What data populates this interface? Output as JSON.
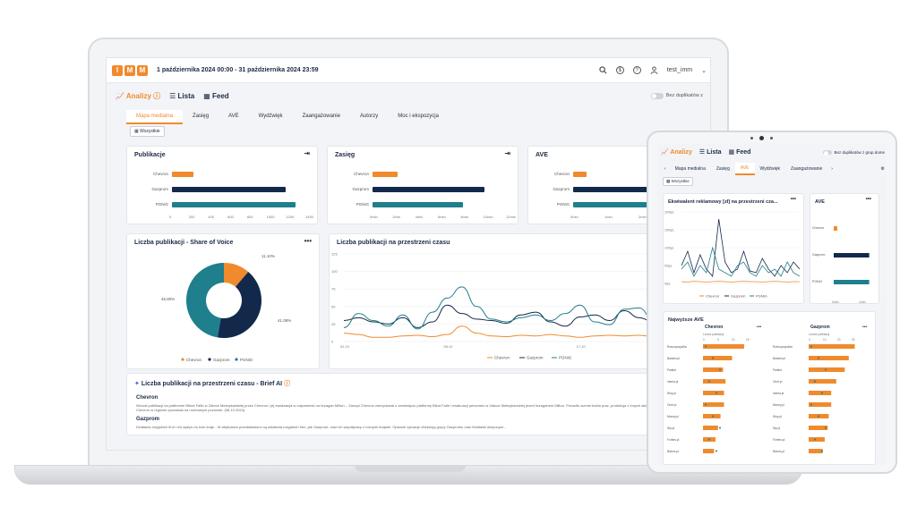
{
  "colors": {
    "chevron": "#f08a2c",
    "gazprom": "#13294b",
    "pgnig": "#1f7f8c",
    "accent": "#f08a2c"
  },
  "logo": [
    "I",
    "M",
    "M"
  ],
  "header": {
    "date_range": "1 października 2024 00:00 - 31 października 2024 23:59",
    "user": "test_imm"
  },
  "views": {
    "analizy": "Analizy",
    "lista": "Lista",
    "feed": "Feed",
    "dup_toggle": "Bez duplikatów z"
  },
  "tabs": [
    "Mapa medialna",
    "Zasięg",
    "AVE",
    "Wydźwięk",
    "Zaangażowanie",
    "Autorzy",
    "Moc i ekspozycja"
  ],
  "filter_button": "Wszystkie",
  "publikacje": {
    "title": "Publikacje",
    "categories": [
      "Chevron",
      "Gazprom",
      "PGNiG"
    ],
    "ticks": [
      "0",
      "200",
      "400",
      "600",
      "800",
      "1000",
      "1200",
      "1400"
    ]
  },
  "zasieg": {
    "title": "Zasięg",
    "categories": [
      "Chevron",
      "Gazprom",
      "PGNiG"
    ],
    "ticks": [
      "0mln",
      "2mln",
      "4mln",
      "6mln",
      "8mln",
      "10mln",
      "12mln"
    ]
  },
  "ave": {
    "title": "AVE",
    "categories": [
      "Chevron",
      "Gazprom",
      "PGNiG"
    ],
    "ticks": [
      "0mln",
      "1mln",
      "2mln",
      "3mln",
      "4mln"
    ]
  },
  "sov": {
    "title": "Liczba publikacji - Share of Voice",
    "labels": [
      "11.10%",
      "41.08%",
      "46.80%"
    ],
    "legend": [
      "Chevron",
      "Gazprom",
      "PGNiG"
    ]
  },
  "time": {
    "title": "Liczba publikacji na przestrzeni czasu",
    "yticks": [
      "125",
      "100",
      "75",
      "50",
      "25",
      "0"
    ],
    "xticks": [
      "01.10",
      "08.10",
      "17.10",
      "25.10"
    ],
    "legend": [
      "Chevron",
      "Gazprom",
      "PGNiG"
    ]
  },
  "brief": {
    "title": "Liczba publikacji na przestrzeni czasu - Brief AI",
    "sections": [
      {
        "name": "Chevron",
        "text": "Wzrost publikacji na platformie Bitnet Fatih w Zatoce Meksykańskiej przez Chevron i jej ewakuacja w odpowiedzi na huragan Milton. - Zarząd Chevron zdecydował o zamknięciu platformy Blind Faith i ewakuacji personelu w Zatoce Meksykańskiej przed huraganem Milton. Ponadto wzrósł liczba prac, produkcja z innych aktywów Chevron w regionie pozostała na normalnym poziomie. (08.10.2024)."
      },
      {
        "name": "Gazprom",
        "text": "Działania rosyjskich firm i ich wpływ na inne kraje - W artykułach przedstawiono są działania rosyjskich firm, jak Gazprom, oraz ich współpracę z różnymi krajami. Opisane sytuacje obejmują grupy Gazpromu oraz Mołdawii dotyczące..."
      }
    ]
  },
  "tablet": {
    "views": {
      "analizy": "Analizy",
      "lista": "Lista",
      "feed": "Feed",
      "dup_toggle": "Bez duplikatów z grup dome"
    },
    "tabs": [
      "Mapa medialna",
      "Zasięg",
      "AVE",
      "Wydźwięk",
      "Zaangażowanie"
    ],
    "filter_button": "Wszystkie",
    "ekwiwalent": {
      "title": "Ekwiwalent reklamowy [zł] na przestrzeni cza...",
      "yticks": [
        "200tys.",
        "150tys.",
        "100tys.",
        "50tys.",
        "0tys."
      ],
      "legend": [
        "Chevron",
        "Gazprom",
        "PGNiG"
      ]
    },
    "ave": {
      "title": "AVE",
      "categories": [
        "Chevron",
        "Gazprom",
        "PGNiG"
      ],
      "ticks": [
        "0mln",
        "1mln"
      ]
    },
    "najwyzsze": {
      "title": "Najwyższe AVE",
      "chevron": {
        "title": "Chevron",
        "axis": "Liczba publikacji",
        "ticks": [
          "0",
          "5",
          "10",
          "15"
        ],
        "sources": [
          "Rzeczpospolita",
          "Bankier.pl",
          "Parkiet",
          "Interia.pl",
          "Wnp.pl",
          "Onet.pl",
          "Money.pl",
          "Wp.pl",
          "Forbes.pl",
          "Biznes.pl"
        ],
        "values": [
          0.82,
          0.58,
          0.4,
          0.45,
          0.42,
          0.42,
          0.35,
          0.3,
          0.25,
          0.22
        ]
      },
      "gazprom": {
        "title": "Gazprom",
        "axis": "Liczba publikacji",
        "ticks": [
          "0",
          "10",
          "20",
          "30"
        ],
        "sources": [
          "Rzeczpospolita",
          "Bankier.pl",
          "Parkiet",
          "Onet.pl",
          "Interia.pl",
          "Money.pl",
          "Wnp.pl",
          "Wp.pl",
          "Forbes.pl",
          "Biznes.pl"
        ],
        "values": [
          0.92,
          0.8,
          0.72,
          0.55,
          0.45,
          0.45,
          0.4,
          0.38,
          0.32,
          0.28
        ]
      }
    }
  },
  "chart_data": [
    {
      "type": "bar",
      "title": "Publikacje",
      "categories": [
        "Chevron",
        "Gazprom",
        "PGNiG"
      ],
      "values": [
        220,
        1170,
        1270
      ],
      "xlim": [
        0,
        1400
      ]
    },
    {
      "type": "bar",
      "title": "Zasięg",
      "categories": [
        "Chevron",
        "Gazprom",
        "PGNiG"
      ],
      "values": [
        2200000,
        9900000,
        8000000
      ],
      "xlim": [
        0,
        12000000
      ]
    },
    {
      "type": "bar",
      "title": "AVE",
      "categories": [
        "Chevron",
        "Gazprom",
        "PGNiG"
      ],
      "values": [
        0.4,
        4.0,
        4.1
      ],
      "xlim": [
        0,
        4
      ]
    },
    {
      "type": "pie",
      "title": "Liczba publikacji - Share of Voice",
      "categories": [
        "Chevron",
        "Gazprom",
        "PGNiG"
      ],
      "values": [
        11.1,
        41.08,
        46.8
      ]
    },
    {
      "type": "line",
      "title": "Liczba publikacji na przestrzeni czasu",
      "x": [
        "01.10",
        "02.10",
        "03.10",
        "04.10",
        "05.10",
        "06.10",
        "07.10",
        "08.10",
        "09.10",
        "10.10",
        "11.10",
        "12.10",
        "13.10",
        "14.10",
        "15.10",
        "16.10",
        "17.10",
        "18.10",
        "19.10",
        "20.10",
        "21.10",
        "22.10",
        "23.10",
        "24.10",
        "25.10",
        "26.10"
      ],
      "ylim": [
        0,
        125
      ],
      "series": [
        {
          "name": "Chevron",
          "values": [
            12,
            10,
            6,
            6,
            8,
            9,
            7,
            10,
            22,
            12,
            8,
            7,
            9,
            8,
            10,
            8,
            6,
            8,
            9,
            8,
            9,
            7,
            8,
            8,
            9,
            7
          ]
        },
        {
          "name": "Gazprom",
          "values": [
            30,
            34,
            28,
            25,
            34,
            20,
            28,
            52,
            40,
            32,
            30,
            26,
            38,
            42,
            28,
            22,
            35,
            38,
            30,
            44,
            34,
            28,
            36,
            42,
            44,
            40
          ]
        },
        {
          "name": "PGNiG",
          "values": [
            20,
            40,
            30,
            22,
            38,
            18,
            42,
            62,
            78,
            50,
            32,
            28,
            34,
            38,
            30,
            40,
            52,
            28,
            24,
            46,
            48,
            30,
            34,
            40,
            46,
            34
          ]
        }
      ]
    },
    {
      "type": "line",
      "title": "Ekwiwalent reklamowy [zł] na przestrzeni cza...",
      "ylim": [
        0,
        200000
      ],
      "series": [
        {
          "name": "Chevron",
          "values": [
            5000,
            4000,
            6000,
            5000,
            4000,
            5000,
            6000,
            5000,
            4000,
            5000,
            6000,
            5000,
            5000,
            4000,
            5000,
            6000,
            5000,
            4000,
            5000,
            5000
          ]
        },
        {
          "name": "Gazprom",
          "values": [
            50000,
            90000,
            30000,
            80000,
            40000,
            20000,
            180000,
            60000,
            30000,
            40000,
            90000,
            35000,
            30000,
            70000,
            40000,
            20000,
            50000,
            30000,
            60000,
            40000
          ]
        },
        {
          "name": "PGNiG",
          "values": [
            40000,
            60000,
            20000,
            50000,
            30000,
            100000,
            40000,
            30000,
            20000,
            50000,
            60000,
            30000,
            20000,
            50000,
            30000,
            40000,
            20000,
            60000,
            30000,
            20000
          ]
        }
      ]
    }
  ]
}
